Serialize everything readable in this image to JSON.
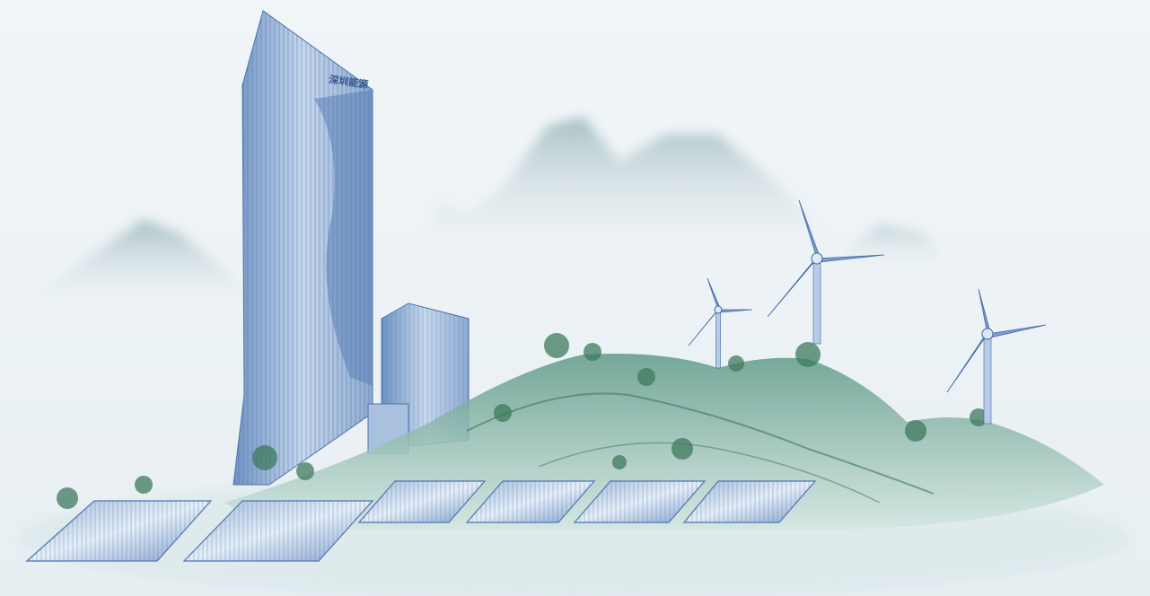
{
  "building_sign": "深圳能源"
}
